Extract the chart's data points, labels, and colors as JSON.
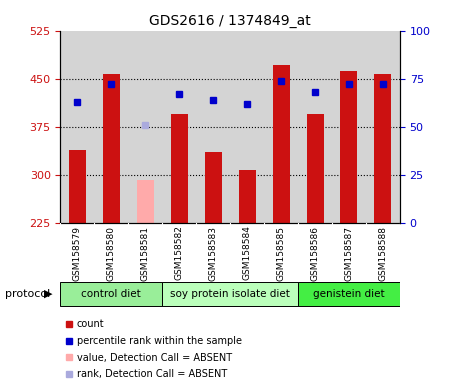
{
  "title": "GDS2616 / 1374849_at",
  "samples": [
    "GSM158579",
    "GSM158580",
    "GSM158581",
    "GSM158582",
    "GSM158583",
    "GSM158584",
    "GSM158585",
    "GSM158586",
    "GSM158587",
    "GSM158588"
  ],
  "count_values": [
    338,
    458,
    null,
    395,
    335,
    308,
    472,
    395,
    462,
    458
  ],
  "count_absent_values": [
    null,
    null,
    291,
    null,
    null,
    null,
    null,
    null,
    null,
    null
  ],
  "percentile_values": [
    63,
    72,
    null,
    67,
    64,
    62,
    74,
    68,
    72,
    72
  ],
  "percentile_absent_values": [
    null,
    null,
    51,
    null,
    null,
    null,
    null,
    null,
    null,
    null
  ],
  "groups": [
    {
      "label": "control diet",
      "start": 0,
      "end": 3,
      "color": "#99ee99"
    },
    {
      "label": "soy protein isolate diet",
      "start": 3,
      "end": 7,
      "color": "#bbffbb"
    },
    {
      "label": "genistein diet",
      "start": 7,
      "end": 10,
      "color": "#44ee44"
    }
  ],
  "ylim_left": [
    225,
    525
  ],
  "ylim_right": [
    0,
    100
  ],
  "yticks_left": [
    225,
    300,
    375,
    450,
    525
  ],
  "yticks_right": [
    0,
    25,
    50,
    75,
    100
  ],
  "bar_color_red": "#cc1111",
  "bar_color_pink": "#ffaaaa",
  "dot_color_blue": "#0000cc",
  "dot_color_lightblue": "#aaaadd",
  "bar_width": 0.5,
  "plot_bg_color": "#dddddd",
  "legend_items": [
    {
      "color": "#cc1111",
      "label": "count"
    },
    {
      "color": "#0000cc",
      "label": "percentile rank within the sample"
    },
    {
      "color": "#ffaaaa",
      "label": "value, Detection Call = ABSENT"
    },
    {
      "color": "#aaaadd",
      "label": "rank, Detection Call = ABSENT"
    }
  ]
}
